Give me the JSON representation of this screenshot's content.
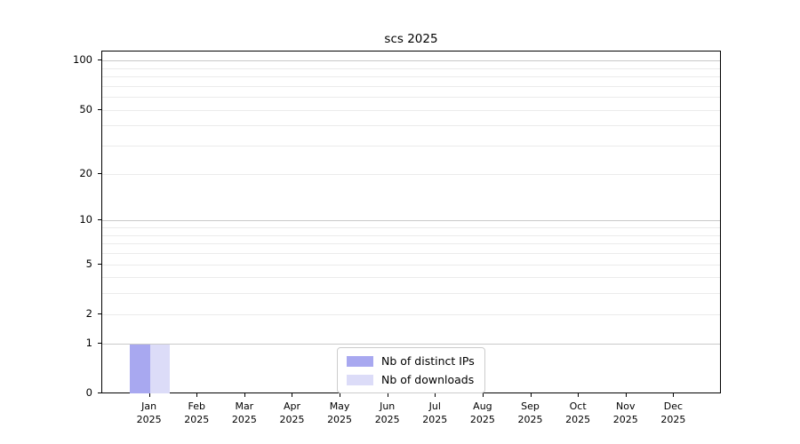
{
  "chart_data": {
    "type": "bar",
    "title": "scs 2025",
    "x_tick_year": "2025",
    "categories": [
      "Jan",
      "Feb",
      "Mar",
      "Apr",
      "May",
      "Jun",
      "Jul",
      "Aug",
      "Sep",
      "Oct",
      "Nov",
      "Dec"
    ],
    "series": [
      {
        "name": "Nb of distinct IPs",
        "color": "#a8a8f0",
        "values": [
          1,
          0,
          0,
          0,
          0,
          0,
          0,
          0,
          0,
          0,
          0,
          0
        ]
      },
      {
        "name": "Nb of downloads",
        "color": "#dcdcf8",
        "values": [
          1,
          0,
          0,
          0,
          0,
          0,
          0,
          0,
          0,
          0,
          0,
          0
        ]
      }
    ],
    "yscale": "log1p",
    "ylim": [
      0,
      115
    ],
    "yticks": [
      0,
      1,
      2,
      5,
      10,
      20,
      50,
      100
    ],
    "minor_yticks": [
      3,
      4,
      6,
      7,
      8,
      9,
      30,
      40,
      60,
      70,
      80,
      90
    ],
    "major_grid_values": [
      1,
      10,
      100
    ],
    "grid": true,
    "legend_position": "lower center",
    "colors": {
      "major_grid": "#c9c9c9",
      "minor_grid": "#ebebeb",
      "axis": "#000000",
      "legend_border": "#cccccc"
    }
  }
}
